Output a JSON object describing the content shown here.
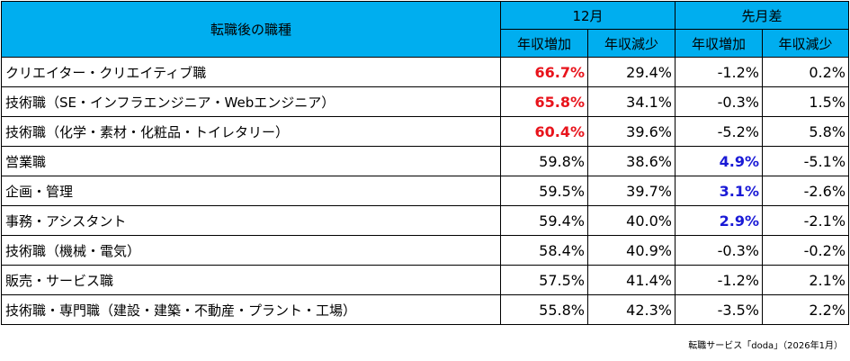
{
  "header": {
    "job_type": "転職後の職種",
    "group_month": "12月",
    "group_diff": "先月差",
    "increase": "年収増加",
    "decrease": "年収減少"
  },
  "colors": {
    "header_bg": "#00AEEF",
    "highlight_red": "#E8141C",
    "highlight_blue": "#1A1AD6"
  },
  "rows": [
    {
      "label": "クリエイター・クリエイティブ職",
      "inc": "66.7%",
      "dec": "29.4%",
      "d_inc": "-1.2%",
      "d_dec": "0.2%",
      "hl": "inc_red"
    },
    {
      "label": "技術職（SE・インフラエンジニア・Webエンジニア）",
      "inc": "65.8%",
      "dec": "34.1%",
      "d_inc": "-0.3%",
      "d_dec": "1.5%",
      "hl": "inc_red"
    },
    {
      "label": "技術職（化学・素材・化粧品・トイレタリー）",
      "inc": "60.4%",
      "dec": "39.6%",
      "d_inc": "-5.2%",
      "d_dec": "5.8%",
      "hl": "inc_red"
    },
    {
      "label": "営業職",
      "inc": "59.8%",
      "dec": "38.6%",
      "d_inc": "4.9%",
      "d_dec": "-5.1%",
      "hl": "dinc_blue"
    },
    {
      "label": "企画・管理",
      "inc": "59.5%",
      "dec": "39.7%",
      "d_inc": "3.1%",
      "d_dec": "-2.6%",
      "hl": "dinc_blue"
    },
    {
      "label": "事務・アシスタント",
      "inc": "59.4%",
      "dec": "40.0%",
      "d_inc": "2.9%",
      "d_dec": "-2.1%",
      "hl": "dinc_blue"
    },
    {
      "label": "技術職（機械・電気）",
      "inc": "58.4%",
      "dec": "40.9%",
      "d_inc": "-0.3%",
      "d_dec": "-0.2%",
      "hl": ""
    },
    {
      "label": "販売・サービス職",
      "inc": "57.5%",
      "dec": "41.4%",
      "d_inc": "-1.2%",
      "d_dec": "2.1%",
      "hl": ""
    },
    {
      "label": "技術職・専門職（建設・建築・不動産・プラント・工場）",
      "inc": "55.8%",
      "dec": "42.3%",
      "d_inc": "-3.5%",
      "d_dec": "2.2%",
      "hl": ""
    }
  ],
  "source": "転職サービス「doda」（2026年1月）"
}
